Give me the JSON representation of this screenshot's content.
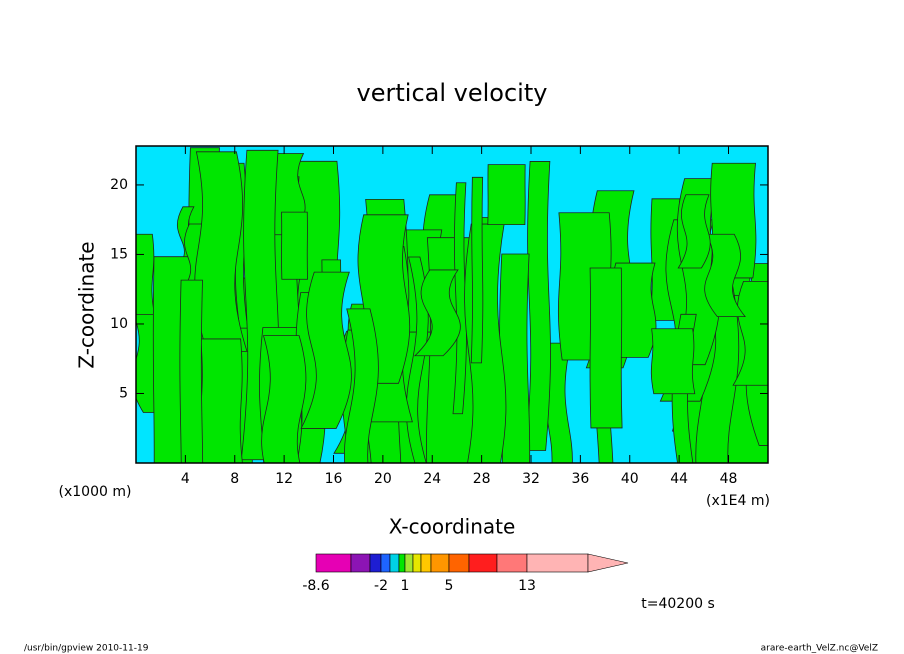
{
  "chart_data": {
    "type": "contour",
    "title": "vertical velocity",
    "xlabel": "X-coordinate",
    "ylabel": "Z-coordinate",
    "x_unit_label": "(x1000 m)",
    "x_scale_label": "(x1E4 m)",
    "time_label": "t=40200 s",
    "footer_left": "/usr/bin/gpview  2010-11-19",
    "footer_right": "arare-earth_VelZ.nc@VelZ",
    "xlim": [
      0,
      51.2
    ],
    "xticks": [
      4,
      8,
      12,
      16,
      20,
      24,
      28,
      32,
      36,
      40,
      44,
      48
    ],
    "ylim": [
      0,
      22.8
    ],
    "yticks": [
      5,
      10,
      15,
      20
    ],
    "field_colors": [
      "#00e5ff",
      "#00e600"
    ],
    "colorbar": {
      "colors": [
        "#e600b4",
        "#8c14b4",
        "#1e1ed2",
        "#1e64ff",
        "#00d2e6",
        "#00e600",
        "#a0e632",
        "#e6e600",
        "#ffc800",
        "#ff9600",
        "#ff6400",
        "#ff1e1e",
        "#ff7878",
        "#ffb4b4"
      ],
      "ticks": [
        -8.6,
        -2,
        1,
        5,
        13
      ]
    }
  }
}
